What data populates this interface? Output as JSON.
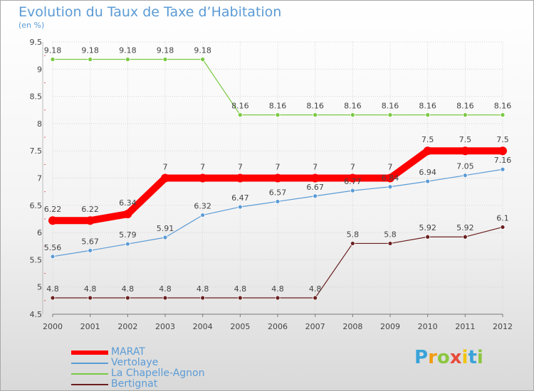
{
  "chart_data": {
    "type": "line",
    "title": "Evolution du Taux de Taxe d’Habitation",
    "subtitle": "(en %)",
    "x": [
      "2000",
      "2001",
      "2002",
      "2003",
      "2004",
      "2005",
      "2006",
      "2007",
      "2008",
      "2009",
      "2010",
      "2011",
      "2012"
    ],
    "ylim": [
      4.5,
      9.5
    ],
    "yticks": [
      4.5,
      5,
      5.5,
      6,
      6.5,
      7,
      7.5,
      8,
      8.5,
      9,
      9.5
    ],
    "grid": true,
    "legend_position": "bottom-left",
    "series": [
      {
        "name": "MARAT",
        "color": "#ff0000",
        "thick": true,
        "values": [
          6.22,
          6.22,
          6.34,
          7,
          7,
          7,
          7,
          7,
          7,
          7,
          7.5,
          7.5,
          7.5
        ],
        "labels": [
          "6.22",
          "6.22",
          "6.34",
          "7",
          "7",
          "7",
          "7",
          "7",
          "7",
          "7",
          "7.5",
          "7.5",
          "7.5"
        ]
      },
      {
        "name": "Vertolaye",
        "color": "#5b9bd5",
        "thick": false,
        "values": [
          5.56,
          5.67,
          5.79,
          5.91,
          6.32,
          6.47,
          6.57,
          6.67,
          6.77,
          6.84,
          6.94,
          7.05,
          7.16
        ],
        "labels": [
          "5.56",
          "5.67",
          "5.79",
          "5.91",
          "6.32",
          "6.47",
          "6.57",
          "6.67",
          "6.77",
          "6.84",
          "6.94",
          "7.05",
          "7.16"
        ]
      },
      {
        "name": "La Chapelle-Agnon",
        "color": "#7ac943",
        "thick": false,
        "values": [
          9.18,
          9.18,
          9.18,
          9.18,
          9.18,
          8.16,
          8.16,
          8.16,
          8.16,
          8.16,
          8.16,
          8.16,
          8.16
        ],
        "labels": [
          "9.18",
          "9.18",
          "9.18",
          "9.18",
          "9.18",
          "8.16",
          "8.16",
          "8.16",
          "8.16",
          "8.16",
          "8.16",
          "8.16",
          "8.16"
        ]
      },
      {
        "name": "Bertignat",
        "color": "#6b1f1f",
        "thick": false,
        "values": [
          4.8,
          4.8,
          4.8,
          4.8,
          4.8,
          4.8,
          4.8,
          4.8,
          5.8,
          5.8,
          5.92,
          5.92,
          6.1
        ],
        "labels": [
          "4.8",
          "4.8",
          "4.8",
          "4.8",
          "4.8",
          "4.8",
          "4.8",
          "4.8",
          "5.8",
          "5.8",
          "5.92",
          "5.92",
          "6.1"
        ]
      }
    ]
  },
  "logo": {
    "text": "Proxiti",
    "letters": [
      "P",
      "r",
      "o",
      "x",
      "i",
      "t",
      "i"
    ],
    "colors": [
      "#3aa3d9",
      "#f39c12",
      "#8cc63f",
      "#e74c3c",
      "#f1c40f",
      "#3aa3d9",
      "#8cc63f"
    ]
  }
}
